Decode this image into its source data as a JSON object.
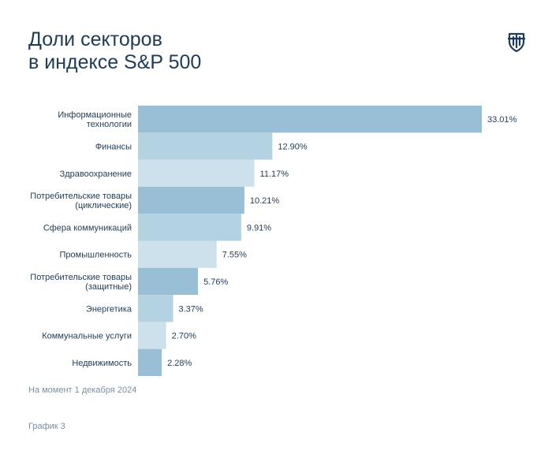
{
  "header": {
    "title_line1": "Доли секторов",
    "title_line2": "в индексе S&P 500"
  },
  "logo": {
    "icon": "shield-crest-icon"
  },
  "chart_data": {
    "type": "bar",
    "orientation": "horizontal",
    "title": "Доли секторов в индексе S&P 500",
    "categories": [
      [
        "Информационные",
        "технологии"
      ],
      [
        "Финансы"
      ],
      [
        "Здравоохранение"
      ],
      [
        "Потребительские товары",
        "(циклические)"
      ],
      [
        "Сфера коммуникаций"
      ],
      [
        "Промышленность"
      ],
      [
        "Потребительские товары",
        "(защитные)"
      ],
      [
        "Энергетика"
      ],
      [
        "Коммунальные услуги"
      ],
      [
        "Недвижимость"
      ]
    ],
    "values": [
      33.01,
      12.9,
      11.17,
      10.21,
      9.91,
      7.55,
      5.76,
      3.37,
      2.7,
      2.28
    ],
    "value_labels": [
      "33.01%",
      "12.90%",
      "11.17%",
      "10.21%",
      "9.91%",
      "7.55%",
      "5.76%",
      "3.37%",
      "2.70%",
      "2.28%"
    ],
    "colors": [
      "#98bfd6",
      "#b3d2e2",
      "#cde1ec",
      "#98bfd6",
      "#b3d2e2",
      "#cde1ec",
      "#98bfd6",
      "#b3d2e2",
      "#cde1ec",
      "#98bfd6"
    ],
    "xlim": [
      0,
      33.01
    ],
    "grid": false,
    "legend": "none"
  },
  "footer": {
    "note": "На момент 1 декабря 2024",
    "figure_label": "График 3"
  }
}
